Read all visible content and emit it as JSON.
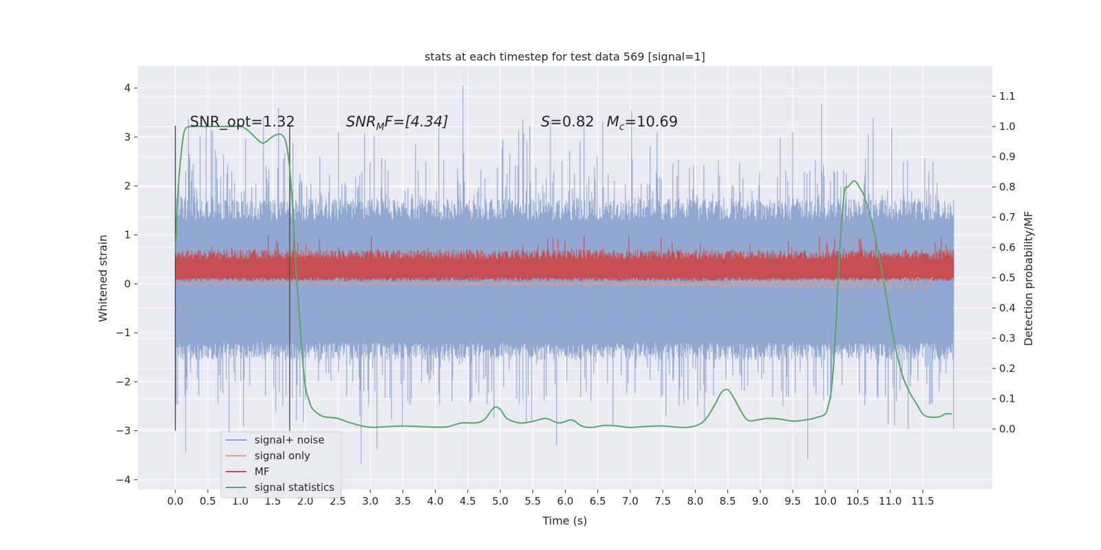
{
  "chart_data": {
    "type": "line",
    "title": "stats at each timestep for test data 569 [signal=1]",
    "xlabel": "Time (s)",
    "ylabel": "Whitened strain",
    "ylabel_right": "Detection probability/MF",
    "xlim": [
      -0.58,
      12.57
    ],
    "ylim": [
      -4.2,
      4.45
    ],
    "ylim_right": [
      -0.2,
      1.2
    ],
    "x_ticks": [
      "0.0",
      "0.5",
      "1.0",
      "1.5",
      "2.0",
      "2.5",
      "3.0",
      "3.5",
      "4.0",
      "4.5",
      "5.0",
      "5.5",
      "6.0",
      "6.5",
      "7.0",
      "7.5",
      "8.0",
      "8.5",
      "9.0",
      "9.5",
      "10.0",
      "10.5",
      "11.0",
      "11.5"
    ],
    "y_ticks": [
      "4",
      "3",
      "2",
      "1",
      "0",
      "−1",
      "−2",
      "−3",
      "−4"
    ],
    "y_ticks_right": [
      "1.1",
      "1.0",
      "0.9",
      "0.8",
      "0.7",
      "0.6",
      "0.5",
      "0.4",
      "0.3",
      "0.2",
      "0.1",
      "0.0"
    ],
    "grid": true,
    "legend_placement": "lower-left",
    "annotations": {
      "snr_opt": "SNR_opt=1.32",
      "snr_mf_main": "SNR",
      "snr_mf_sub": "M",
      "snr_mf_rest": "F=[4.34]",
      "s_var": "S",
      "s_value": "=0.82",
      "mc_var": "M",
      "mc_sub": "c",
      "mc_value": "=10.69"
    },
    "vertical_lines": [
      {
        "x": 0.0,
        "y_range": [
          -3.0,
          3.23
        ]
      },
      {
        "x": 1.76,
        "y_range": [
          -3.0,
          3.23
        ]
      }
    ],
    "series": [
      {
        "name": "signal+ noise",
        "color": "#8da3cf",
        "axis": "left",
        "x_range": [
          0.0,
          11.98
        ],
        "typical_band": [
          -1.2,
          1.3
        ],
        "min": -3.85,
        "max": 4.1
      },
      {
        "name": "signal only",
        "color": "#e0a088",
        "axis": "left",
        "x_range": [
          0.0,
          11.65
        ],
        "approx_value": 0.0
      },
      {
        "name": "MF",
        "color": "#c44e52",
        "axis": "left",
        "x_range": [
          0.0,
          11.98
        ],
        "typical_band": [
          0.05,
          0.65
        ],
        "max": 1.0
      },
      {
        "name": "signal statistics",
        "color": "#55a868",
        "axis": "right",
        "x": [
          0.0,
          0.04,
          0.1,
          0.15,
          0.25,
          0.5,
          0.8,
          1.0,
          1.1,
          1.2,
          1.3,
          1.35,
          1.4,
          1.5,
          1.6,
          1.65,
          1.7,
          1.75,
          1.8,
          1.85,
          1.9,
          1.95,
          2.0,
          2.05,
          2.1,
          2.2,
          2.3,
          2.5,
          2.7,
          3.0,
          3.5,
          4.0,
          4.2,
          4.4,
          4.6,
          4.75,
          4.9,
          5.0,
          5.1,
          5.3,
          5.5,
          5.7,
          5.9,
          6.1,
          6.25,
          6.4,
          6.6,
          6.8,
          7.0,
          7.2,
          7.5,
          7.8,
          8.0,
          8.15,
          8.3,
          8.4,
          8.5,
          8.6,
          8.7,
          8.8,
          8.9,
          9.1,
          9.3,
          9.5,
          9.7,
          9.9,
          10.0,
          10.05,
          10.1,
          10.15,
          10.2,
          10.25,
          10.3,
          10.35,
          10.45,
          10.55,
          10.6,
          10.7,
          10.8,
          10.9,
          11.0,
          11.1,
          11.2,
          11.3,
          11.4,
          11.5,
          11.6,
          11.75,
          11.85,
          11.95
        ],
        "values": [
          0.58,
          0.78,
          0.93,
          0.99,
          1.0,
          1.0,
          1.0,
          1.0,
          0.99,
          0.97,
          0.95,
          0.945,
          0.95,
          0.967,
          0.975,
          0.97,
          0.95,
          0.88,
          0.75,
          0.55,
          0.4,
          0.25,
          0.14,
          0.1,
          0.07,
          0.05,
          0.04,
          0.035,
          0.02,
          0.006,
          0.01,
          0.006,
          0.008,
          0.02,
          0.02,
          0.03,
          0.07,
          0.065,
          0.035,
          0.02,
          0.025,
          0.035,
          0.02,
          0.03,
          0.01,
          0.005,
          0.012,
          0.01,
          0.005,
          0.008,
          0.01,
          0.005,
          0.01,
          0.03,
          0.08,
          0.12,
          0.13,
          0.1,
          0.06,
          0.03,
          0.028,
          0.035,
          0.033,
          0.026,
          0.03,
          0.04,
          0.05,
          0.08,
          0.14,
          0.28,
          0.5,
          0.68,
          0.79,
          0.8,
          0.82,
          0.79,
          0.77,
          0.7,
          0.6,
          0.49,
          0.36,
          0.25,
          0.17,
          0.12,
          0.085,
          0.05,
          0.04,
          0.04,
          0.05,
          0.05
        ]
      }
    ]
  }
}
